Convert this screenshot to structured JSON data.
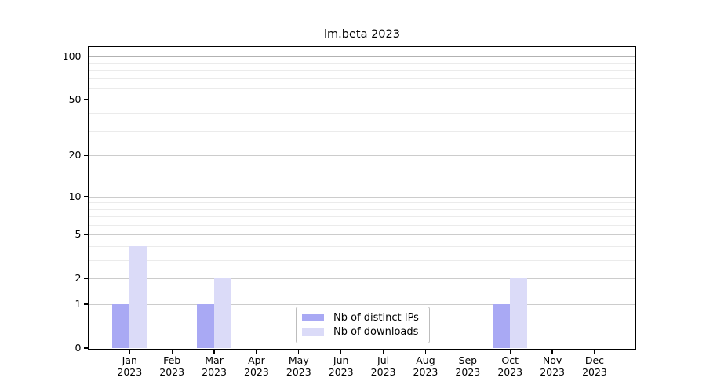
{
  "chart_data": {
    "type": "bar",
    "title": "lm.beta 2023",
    "categories": [
      "Jan",
      "Feb",
      "Mar",
      "Apr",
      "May",
      "Jun",
      "Jul",
      "Aug",
      "Sep",
      "Oct",
      "Nov",
      "Dec"
    ],
    "category_sublabel": "2023",
    "series": [
      {
        "name": "Nb of distinct IPs",
        "color": "#a9a9f4",
        "values": [
          1,
          0,
          1,
          0,
          0,
          0,
          0,
          0,
          0,
          1,
          0,
          0
        ]
      },
      {
        "name": "Nb of downloads",
        "color": "#dbdbf8",
        "values": [
          4,
          0,
          2,
          0,
          0,
          0,
          0,
          0,
          0,
          2,
          0,
          0
        ]
      }
    ],
    "y_axis": {
      "scale": "log10(1+x)",
      "ticks": [
        0,
        1,
        2,
        5,
        10,
        20,
        50,
        100
      ],
      "minor_gridlines": [
        3,
        4,
        6,
        7,
        8,
        9,
        30,
        40,
        60,
        70,
        80,
        90
      ],
      "top_value": 115
    },
    "legend_position": "bottom-center-inside",
    "grid": true
  },
  "colors": {
    "background": "#ffffff",
    "axis": "#000000",
    "major_grid": "#cccccc",
    "minor_grid": "#ebebeb",
    "top_grid": "#b2b2b2",
    "legend_border": "#bdbdbd",
    "text": "#000000"
  }
}
